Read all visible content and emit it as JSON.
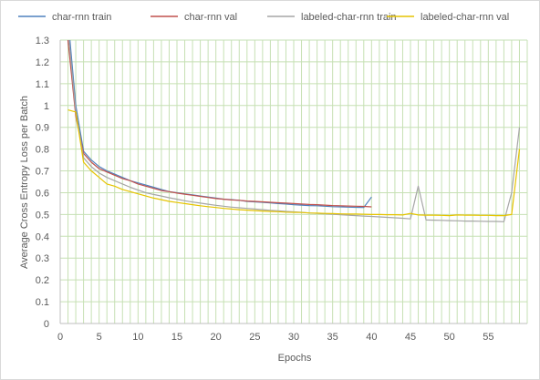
{
  "chart_data": {
    "type": "line",
    "title": "",
    "xlabel": "Epochs",
    "ylabel": "Average Cross Entropy Loss per Batch",
    "xlim": [
      0,
      60
    ],
    "ylim": [
      0,
      1.3
    ],
    "x_ticks": [
      "0",
      "5",
      "10",
      "15",
      "20",
      "25",
      "30",
      "35",
      "40",
      "45",
      "50",
      "55"
    ],
    "y_ticks": [
      "0",
      "0.1",
      "0.2",
      "0.3",
      "0.4",
      "0.5",
      "0.6",
      "0.7",
      "0.8",
      "0.9",
      "1",
      "1.1",
      "1.2",
      "1.3"
    ],
    "grid": "vertical every epoch, horizontal every 0.1",
    "grid_color": "#c6e0b4",
    "legend_position": "top",
    "series": [
      {
        "name": "char-rnn train",
        "color": "#4f81bd",
        "x": [
          1,
          2,
          3,
          4,
          5,
          6,
          7,
          8,
          9,
          10,
          11,
          12,
          13,
          14,
          15,
          16,
          17,
          18,
          19,
          20,
          21,
          22,
          23,
          24,
          25,
          26,
          27,
          28,
          29,
          30,
          31,
          32,
          33,
          34,
          35,
          36,
          37,
          38,
          39,
          40
        ],
        "values": [
          1.4,
          1.0,
          0.79,
          0.75,
          0.72,
          0.7,
          0.685,
          0.67,
          0.655,
          0.645,
          0.635,
          0.625,
          0.615,
          0.605,
          0.6,
          0.595,
          0.59,
          0.585,
          0.58,
          0.575,
          0.57,
          0.568,
          0.565,
          0.56,
          0.558,
          0.556,
          0.553,
          0.55,
          0.548,
          0.545,
          0.543,
          0.541,
          0.54,
          0.538,
          0.536,
          0.535,
          0.534,
          0.533,
          0.532,
          0.58
        ]
      },
      {
        "name": "char-rnn val",
        "color": "#c0504d",
        "x": [
          1,
          2,
          3,
          4,
          5,
          6,
          7,
          8,
          9,
          10,
          11,
          12,
          13,
          14,
          15,
          16,
          17,
          18,
          19,
          20,
          21,
          22,
          23,
          24,
          25,
          26,
          27,
          28,
          29,
          30,
          31,
          32,
          33,
          34,
          35,
          36,
          37,
          38,
          39,
          40
        ],
        "values": [
          1.3,
          0.95,
          0.78,
          0.74,
          0.71,
          0.695,
          0.68,
          0.665,
          0.655,
          0.64,
          0.63,
          0.62,
          0.61,
          0.605,
          0.598,
          0.593,
          0.588,
          0.583,
          0.578,
          0.573,
          0.57,
          0.567,
          0.565,
          0.562,
          0.56,
          0.558,
          0.556,
          0.554,
          0.552,
          0.55,
          0.548,
          0.546,
          0.545,
          0.543,
          0.541,
          0.54,
          0.539,
          0.538,
          0.537,
          0.535
        ]
      },
      {
        "name": "labeled-char-rnn train",
        "color": "#a6a6a6",
        "x": [
          1,
          2,
          3,
          4,
          5,
          6,
          7,
          8,
          9,
          10,
          11,
          12,
          13,
          14,
          15,
          16,
          17,
          18,
          19,
          20,
          21,
          22,
          23,
          24,
          25,
          26,
          27,
          28,
          29,
          30,
          31,
          32,
          33,
          34,
          35,
          36,
          37,
          38,
          39,
          40,
          41,
          42,
          43,
          44,
          45,
          46,
          47,
          48,
          49,
          50,
          51,
          52,
          53,
          54,
          55,
          56,
          57,
          58,
          59
        ],
        "values": [
          1.35,
          0.97,
          0.76,
          0.72,
          0.69,
          0.67,
          0.655,
          0.64,
          0.625,
          0.612,
          0.6,
          0.592,
          0.585,
          0.577,
          0.57,
          0.563,
          0.557,
          0.552,
          0.547,
          0.542,
          0.538,
          0.534,
          0.531,
          0.528,
          0.525,
          0.522,
          0.519,
          0.517,
          0.514,
          0.512,
          0.51,
          0.507,
          0.505,
          0.503,
          0.501,
          0.499,
          0.497,
          0.495,
          0.493,
          0.491,
          0.489,
          0.487,
          0.485,
          0.483,
          0.48,
          0.63,
          0.475,
          0.474,
          0.473,
          0.472,
          0.471,
          0.47,
          0.47,
          0.469,
          0.468,
          0.468,
          0.467,
          0.6,
          0.9
        ]
      },
      {
        "name": "labeled-char-rnn val",
        "color": "#e6c400",
        "x": [
          1,
          2,
          3,
          4,
          5,
          6,
          7,
          8,
          9,
          10,
          11,
          12,
          13,
          14,
          15,
          16,
          17,
          18,
          19,
          20,
          21,
          22,
          23,
          24,
          25,
          26,
          27,
          28,
          29,
          30,
          31,
          32,
          33,
          34,
          35,
          36,
          37,
          38,
          39,
          40,
          41,
          42,
          43,
          44,
          45,
          46,
          47,
          48,
          49,
          50,
          51,
          52,
          53,
          54,
          55,
          56,
          57,
          58,
          59
        ],
        "values": [
          0.98,
          0.97,
          0.74,
          0.7,
          0.67,
          0.64,
          0.63,
          0.615,
          0.605,
          0.595,
          0.585,
          0.575,
          0.568,
          0.56,
          0.555,
          0.55,
          0.545,
          0.54,
          0.536,
          0.532,
          0.528,
          0.525,
          0.522,
          0.52,
          0.518,
          0.516,
          0.514,
          0.513,
          0.511,
          0.51,
          0.509,
          0.507,
          0.506,
          0.505,
          0.504,
          0.503,
          0.502,
          0.502,
          0.501,
          0.5,
          0.5,
          0.499,
          0.499,
          0.498,
          0.505,
          0.498,
          0.497,
          0.497,
          0.496,
          0.495,
          0.498,
          0.497,
          0.497,
          0.496,
          0.496,
          0.495,
          0.495,
          0.5,
          0.8
        ]
      }
    ]
  }
}
